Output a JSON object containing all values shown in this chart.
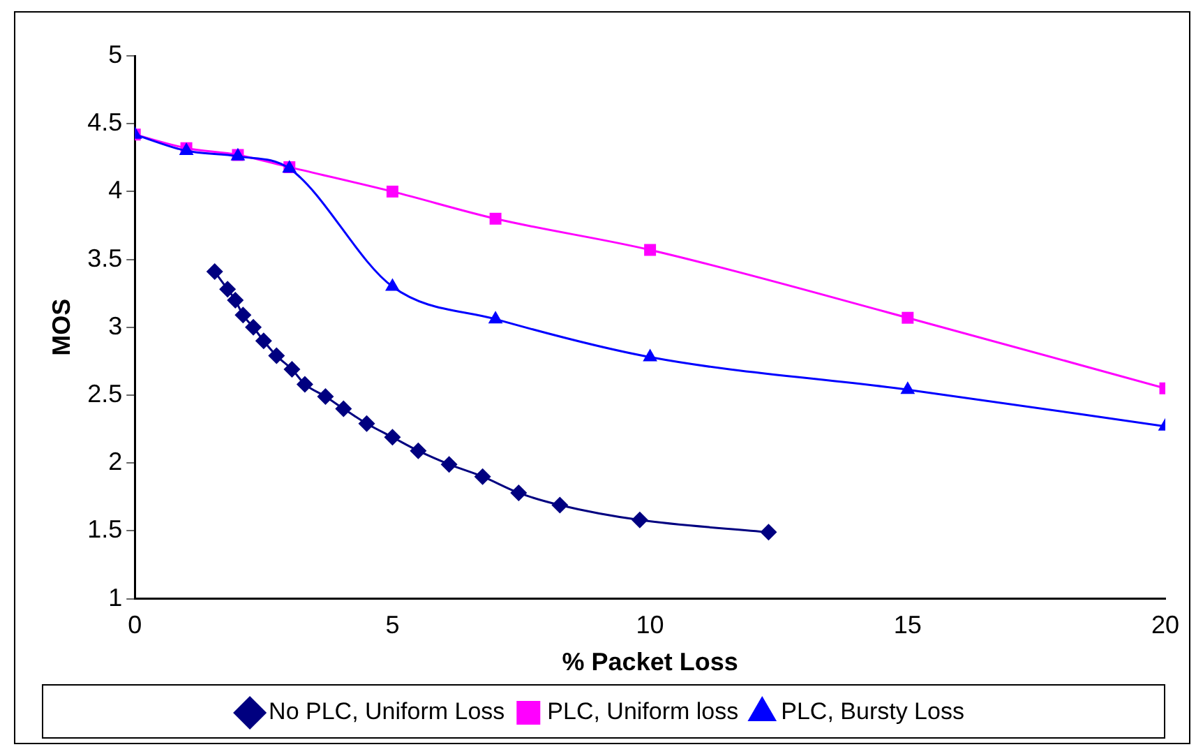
{
  "chart_data": {
    "type": "line",
    "xlabel": "% Packet Loss",
    "ylabel": "MOS",
    "xlim": [
      0,
      20
    ],
    "xticks": [
      0,
      5,
      10,
      15,
      20
    ],
    "ylim": [
      1,
      5
    ],
    "yticks": [
      1,
      1.5,
      2,
      2.5,
      3,
      3.5,
      4,
      4.5,
      5
    ],
    "grid": false,
    "legend": "bottom",
    "series": [
      {
        "name": "No PLC, Uniform Loss",
        "color": "#000080",
        "marker": "diamond",
        "x": [
          1.55,
          1.8,
          1.95,
          2.1,
          2.3,
          2.5,
          2.75,
          3.05,
          3.3,
          3.7,
          4.05,
          4.5,
          5,
          5.5,
          6.1,
          6.75,
          7.45,
          8.25,
          9.8,
          12.3
        ],
        "values": [
          3.41,
          3.28,
          3.2,
          3.09,
          3.0,
          2.9,
          2.79,
          2.69,
          2.58,
          2.49,
          2.4,
          2.29,
          2.19,
          2.09,
          1.99,
          1.9,
          1.78,
          1.69,
          1.58,
          1.49
        ]
      },
      {
        "name": "PLC, Uniform loss",
        "color": "#ff00ff",
        "marker": "square",
        "x": [
          0,
          1,
          2,
          3,
          5,
          7,
          10,
          15,
          20
        ],
        "values": [
          4.42,
          4.32,
          4.27,
          4.18,
          4.0,
          3.8,
          3.57,
          3.07,
          2.55
        ]
      },
      {
        "name": "PLC, Bursty Loss",
        "color": "#0000ff",
        "marker": "triangle",
        "x": [
          0,
          1,
          2,
          3,
          5,
          7,
          10,
          15,
          20
        ],
        "values": [
          4.42,
          4.3,
          4.26,
          4.17,
          3.3,
          3.06,
          2.78,
          2.54,
          2.27
        ]
      }
    ]
  }
}
